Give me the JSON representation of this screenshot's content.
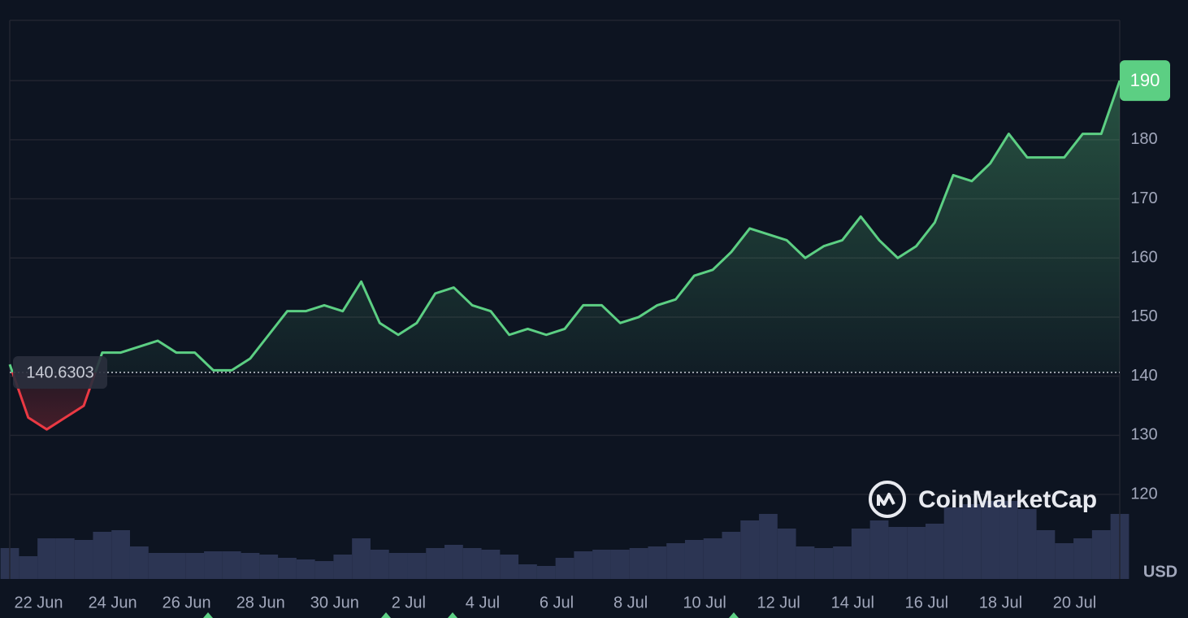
{
  "chart_data": {
    "type": "line",
    "y_label": "USD",
    "watermark": "CoinMarketCap",
    "baseline": 140.6303,
    "baseline_label": "140.6303",
    "categories": [
      null,
      null,
      "22 Jun",
      null,
      null,
      null,
      "24 Jun",
      null,
      null,
      null,
      "26 Jun",
      null,
      null,
      null,
      "28 Jun",
      null,
      null,
      null,
      "30 Jun",
      null,
      null,
      null,
      "2 Jul",
      null,
      null,
      null,
      "4 Jul",
      null,
      null,
      null,
      "6 Jul",
      null,
      null,
      null,
      "8 Jul",
      null,
      null,
      null,
      "10 Jul",
      null,
      null,
      null,
      "12 Jul",
      null,
      null,
      null,
      "14 Jul",
      null,
      null,
      null,
      "16 Jul",
      null,
      null,
      null,
      "18 Jul",
      null,
      null,
      null,
      "20 Jul",
      null,
      null
    ],
    "values": [
      142,
      133,
      131,
      133,
      135,
      144,
      144,
      145,
      146,
      144,
      144,
      141,
      141,
      143,
      147,
      151,
      151,
      152,
      151,
      156,
      149,
      147,
      149,
      154,
      155,
      152,
      151,
      147,
      148,
      147,
      148,
      152,
      152,
      149,
      150,
      152,
      153,
      157,
      158,
      161,
      165,
      164,
      163,
      160,
      162,
      163,
      167,
      163,
      160,
      162,
      166,
      174,
      173,
      176,
      181,
      177,
      177,
      177,
      181,
      181,
      190
    ],
    "volume": [
      38,
      28,
      50,
      50,
      48,
      58,
      60,
      40,
      32,
      32,
      32,
      34,
      34,
      32,
      30,
      26,
      24,
      22,
      30,
      50,
      36,
      32,
      32,
      38,
      42,
      38,
      36,
      30,
      18,
      16,
      26,
      34,
      36,
      36,
      38,
      40,
      44,
      48,
      50,
      58,
      72,
      80,
      62,
      40,
      38,
      40,
      62,
      72,
      64,
      64,
      68,
      88,
      92,
      96,
      96,
      86,
      60,
      44,
      50,
      60,
      80
    ],
    "up_color": "#5ccf83",
    "down_color": "#ea3943",
    "volume_color": "#2c3553",
    "ylim": [
      105.7,
      200.2
    ],
    "yticks": [
      120,
      130,
      140,
      150,
      160,
      170,
      180,
      190
    ],
    "grid": true
  }
}
